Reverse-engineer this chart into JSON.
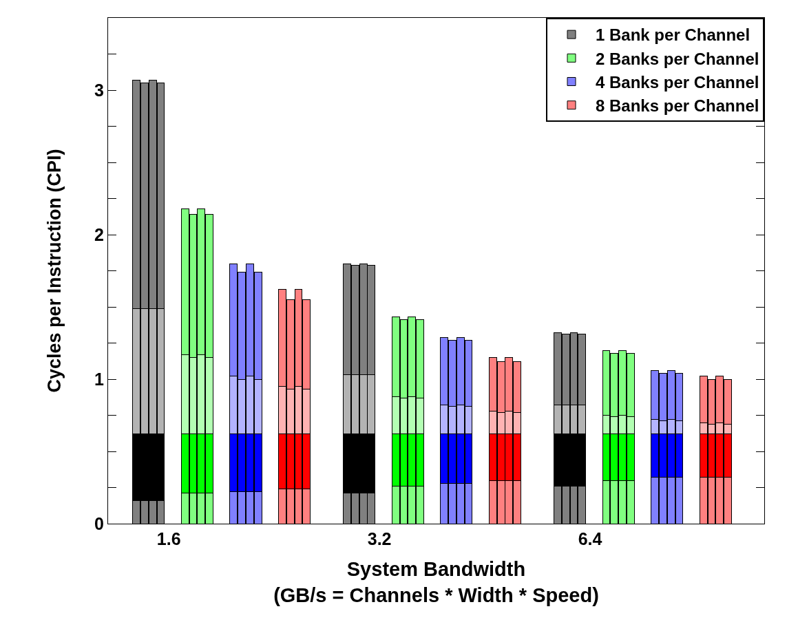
{
  "chart_data": {
    "type": "bar",
    "stacked": true,
    "xlabel": "System Bandwidth\n(GB/s = Channels * Width * Speed)",
    "ylabel": "Cycles per Instruction (CPI)",
    "legend": "top right",
    "categories": [
      null,
      null,
      null,
      null,
      null,
      null,
      null,
      "1.6",
      null,
      null,
      null,
      null,
      null,
      null,
      null,
      null,
      null,
      null,
      null,
      null,
      null,
      null,
      null,
      null,
      null,
      null,
      null,
      null,
      null,
      null,
      null,
      null,
      null,
      "3.2",
      null,
      null,
      null,
      null,
      null,
      null,
      null,
      null,
      null,
      null,
      null,
      null,
      null,
      null,
      null,
      null,
      null,
      null,
      null,
      null,
      null,
      null,
      null,
      null,
      null,
      "6.4",
      null,
      null,
      null,
      null,
      null,
      null,
      null,
      null,
      null,
      null,
      null,
      null,
      null,
      null,
      null,
      null,
      null,
      null,
      null,
      null,
      null
    ],
    "ylim": [
      0,
      3.5
    ],
    "yticks": [
      0,
      {
        "value": 0.25,
        "label": null
      },
      {
        "value": 0.5,
        "label": null
      },
      {
        "value": 0.75,
        "label": null
      },
      1,
      {
        "value": 1.25,
        "label": null
      },
      {
        "value": 1.5,
        "label": null
      },
      {
        "value": 1.75,
        "label": null
      },
      2,
      {
        "value": 2.25,
        "label": null
      },
      {
        "value": 2.5,
        "label": null
      },
      {
        "value": 2.75,
        "label": null
      },
      3,
      {
        "value": 3.25,
        "label": null
      }
    ],
    "series": [
      {
        "name": "1 Bank per Channel",
        "color": "#808080",
        "values": [
          null,
          null,
          null,
          0.16,
          0.16,
          0.16,
          0.16,
          null,
          null,
          null,
          null,
          null,
          null,
          null,
          null,
          null,
          null,
          null,
          null,
          null,
          null,
          null,
          null,
          null,
          null,
          null,
          null,
          null,
          null,
          0.21,
          0.21,
          0.21,
          0.21,
          null,
          null,
          null,
          null,
          null,
          null,
          null,
          null,
          null,
          null,
          null,
          null,
          null,
          null,
          null,
          null,
          null,
          null,
          null,
          null,
          null,
          null,
          0.26,
          0.26,
          0.26,
          0.26,
          null,
          null,
          null,
          null,
          null,
          null,
          null,
          null,
          null,
          null,
          null,
          null,
          null,
          null,
          null,
          null,
          null,
          null,
          null,
          null,
          null,
          null
        ]
      },
      {
        "color": "#000000",
        "values": [
          null,
          null,
          null,
          0.46,
          0.46,
          0.46,
          0.46,
          null,
          null,
          null,
          null,
          null,
          null,
          null,
          null,
          null,
          null,
          null,
          null,
          null,
          null,
          null,
          null,
          null,
          null,
          null,
          null,
          null,
          null,
          0.41,
          0.41,
          0.41,
          0.41,
          null,
          null,
          null,
          null,
          null,
          null,
          null,
          null,
          null,
          null,
          null,
          null,
          null,
          null,
          null,
          null,
          null,
          null,
          null,
          null,
          null,
          null,
          0.36,
          0.36,
          0.36,
          0.36,
          null,
          null,
          null,
          null,
          null,
          null,
          null,
          null,
          null,
          null,
          null,
          null,
          null,
          null,
          null,
          null,
          null,
          null,
          null,
          null,
          null,
          null
        ]
      },
      {
        "color": "#b3b3b3",
        "values": [
          null,
          null,
          null,
          0.87,
          0.87,
          0.87,
          0.87,
          null,
          null,
          null,
          null,
          null,
          null,
          null,
          null,
          null,
          null,
          null,
          null,
          null,
          null,
          null,
          null,
          null,
          null,
          null,
          null,
          null,
          null,
          0.41,
          0.41,
          0.41,
          0.41,
          null,
          null,
          null,
          null,
          null,
          null,
          null,
          null,
          null,
          null,
          null,
          null,
          null,
          null,
          null,
          null,
          null,
          null,
          null,
          null,
          null,
          null,
          0.2,
          0.2,
          0.2,
          0.2,
          null,
          null,
          null,
          null,
          null,
          null,
          null,
          null,
          null,
          null,
          null,
          null,
          null,
          null,
          null,
          null,
          null,
          null,
          null,
          null,
          null,
          null
        ]
      },
      {
        "color": "#808080",
        "values": [
          null,
          null,
          null,
          1.58,
          1.56,
          1.58,
          1.56,
          null,
          null,
          null,
          null,
          null,
          null,
          null,
          null,
          null,
          null,
          null,
          null,
          null,
          null,
          null,
          null,
          null,
          null,
          null,
          null,
          null,
          null,
          0.77,
          0.76,
          0.77,
          0.76,
          null,
          null,
          null,
          null,
          null,
          null,
          null,
          null,
          null,
          null,
          null,
          null,
          null,
          null,
          null,
          null,
          null,
          null,
          null,
          null,
          null,
          null,
          0.5,
          0.49,
          0.5,
          0.49,
          null,
          null,
          null,
          null,
          null,
          null,
          null,
          null,
          null,
          null,
          null,
          null,
          null,
          null,
          null,
          null,
          null,
          null,
          null,
          null,
          null,
          null
        ]
      },
      {
        "name": "2 Banks per Channel",
        "color": "#80ff80",
        "values": [
          null,
          null,
          null,
          null,
          null,
          null,
          null,
          null,
          null,
          0.21,
          0.21,
          0.21,
          0.21,
          null,
          null,
          null,
          null,
          null,
          null,
          null,
          null,
          null,
          null,
          null,
          null,
          null,
          null,
          null,
          null,
          null,
          null,
          null,
          null,
          null,
          null,
          0.26,
          0.26,
          0.26,
          0.26,
          null,
          null,
          null,
          null,
          null,
          null,
          null,
          null,
          null,
          null,
          null,
          null,
          null,
          null,
          null,
          null,
          null,
          null,
          null,
          null,
          null,
          null,
          0.3,
          0.3,
          0.3,
          0.3,
          null,
          null,
          null,
          null,
          null,
          null,
          null,
          null,
          null,
          null,
          null,
          null,
          null,
          null,
          null,
          null
        ]
      },
      {
        "color": "#00ff00",
        "values": [
          null,
          null,
          null,
          null,
          null,
          null,
          null,
          null,
          null,
          0.41,
          0.41,
          0.41,
          0.41,
          null,
          null,
          null,
          null,
          null,
          null,
          null,
          null,
          null,
          null,
          null,
          null,
          null,
          null,
          null,
          null,
          null,
          null,
          null,
          null,
          null,
          null,
          0.36,
          0.36,
          0.36,
          0.36,
          null,
          null,
          null,
          null,
          null,
          null,
          null,
          null,
          null,
          null,
          null,
          null,
          null,
          null,
          null,
          null,
          null,
          null,
          null,
          null,
          null,
          null,
          0.32,
          0.32,
          0.32,
          0.32,
          null,
          null,
          null,
          null,
          null,
          null,
          null,
          null,
          null,
          null,
          null,
          null,
          null,
          null,
          null,
          null
        ]
      },
      {
        "color": "#b3ffb3",
        "values": [
          null,
          null,
          null,
          null,
          null,
          null,
          null,
          null,
          null,
          0.55,
          0.53,
          0.55,
          0.53,
          null,
          null,
          null,
          null,
          null,
          null,
          null,
          null,
          null,
          null,
          null,
          null,
          null,
          null,
          null,
          null,
          null,
          null,
          null,
          null,
          null,
          null,
          0.26,
          0.25,
          0.26,
          0.25,
          null,
          null,
          null,
          null,
          null,
          null,
          null,
          null,
          null,
          null,
          null,
          null,
          null,
          null,
          null,
          null,
          null,
          null,
          null,
          null,
          null,
          null,
          0.13,
          0.12,
          0.13,
          0.12,
          null,
          null,
          null,
          null,
          null,
          null,
          null,
          null,
          null,
          null,
          null,
          null,
          null,
          null,
          null,
          null
        ]
      },
      {
        "color": "#80ff80",
        "values": [
          null,
          null,
          null,
          null,
          null,
          null,
          null,
          null,
          null,
          1.01,
          0.99,
          1.01,
          0.99,
          null,
          null,
          null,
          null,
          null,
          null,
          null,
          null,
          null,
          null,
          null,
          null,
          null,
          null,
          null,
          null,
          null,
          null,
          null,
          null,
          null,
          null,
          0.55,
          0.54,
          0.55,
          0.54,
          null,
          null,
          null,
          null,
          null,
          null,
          null,
          null,
          null,
          null,
          null,
          null,
          null,
          null,
          null,
          null,
          null,
          null,
          null,
          null,
          null,
          null,
          0.45,
          0.44,
          0.45,
          0.44,
          null,
          null,
          null,
          null,
          null,
          null,
          null,
          null,
          null,
          null,
          null,
          null,
          null,
          null,
          null,
          null
        ]
      },
      {
        "name": "4 Banks per Channel",
        "color": "#8080ff",
        "values": [
          null,
          null,
          null,
          null,
          null,
          null,
          null,
          null,
          null,
          null,
          null,
          null,
          null,
          null,
          null,
          0.22,
          0.22,
          0.22,
          0.22,
          null,
          null,
          null,
          null,
          null,
          null,
          null,
          null,
          null,
          null,
          null,
          null,
          null,
          null,
          null,
          null,
          null,
          null,
          null,
          null,
          null,
          null,
          0.28,
          0.28,
          0.28,
          0.28,
          null,
          null,
          null,
          null,
          null,
          null,
          null,
          null,
          null,
          null,
          null,
          null,
          null,
          null,
          null,
          null,
          null,
          null,
          null,
          null,
          null,
          null,
          0.32,
          0.32,
          0.32,
          0.32,
          null,
          null,
          null,
          null,
          null,
          null,
          null,
          null,
          null,
          null
        ]
      },
      {
        "color": "#0000ff",
        "values": [
          null,
          null,
          null,
          null,
          null,
          null,
          null,
          null,
          null,
          null,
          null,
          null,
          null,
          null,
          null,
          0.4,
          0.4,
          0.4,
          0.4,
          null,
          null,
          null,
          null,
          null,
          null,
          null,
          null,
          null,
          null,
          null,
          null,
          null,
          null,
          null,
          null,
          null,
          null,
          null,
          null,
          null,
          null,
          0.34,
          0.34,
          0.34,
          0.34,
          null,
          null,
          null,
          null,
          null,
          null,
          null,
          null,
          null,
          null,
          null,
          null,
          null,
          null,
          null,
          null,
          null,
          null,
          null,
          null,
          null,
          null,
          0.3,
          0.3,
          0.3,
          0.3,
          null,
          null,
          null,
          null,
          null,
          null,
          null,
          null,
          null,
          null
        ]
      },
      {
        "color": "#b3b3ff",
        "values": [
          null,
          null,
          null,
          null,
          null,
          null,
          null,
          null,
          null,
          null,
          null,
          null,
          null,
          null,
          null,
          0.4,
          0.38,
          0.4,
          0.38,
          null,
          null,
          null,
          null,
          null,
          null,
          null,
          null,
          null,
          null,
          null,
          null,
          null,
          null,
          null,
          null,
          null,
          null,
          null,
          null,
          null,
          null,
          0.2,
          0.19,
          0.2,
          0.19,
          null,
          null,
          null,
          null,
          null,
          null,
          null,
          null,
          null,
          null,
          null,
          null,
          null,
          null,
          null,
          null,
          null,
          null,
          null,
          null,
          null,
          null,
          0.1,
          0.09,
          0.1,
          0.09,
          null,
          null,
          null,
          null,
          null,
          null,
          null,
          null,
          null,
          null
        ]
      },
      {
        "color": "#8080ff",
        "values": [
          null,
          null,
          null,
          null,
          null,
          null,
          null,
          null,
          null,
          null,
          null,
          null,
          null,
          null,
          null,
          0.78,
          0.74,
          0.78,
          0.74,
          null,
          null,
          null,
          null,
          null,
          null,
          null,
          null,
          null,
          null,
          null,
          null,
          null,
          null,
          null,
          null,
          null,
          null,
          null,
          null,
          null,
          null,
          0.47,
          0.46,
          0.47,
          0.46,
          null,
          null,
          null,
          null,
          null,
          null,
          null,
          null,
          null,
          null,
          null,
          null,
          null,
          null,
          null,
          null,
          null,
          null,
          null,
          null,
          null,
          null,
          0.34,
          0.33,
          0.34,
          0.33,
          null,
          null,
          null,
          null,
          null,
          null,
          null,
          null,
          null,
          null
        ]
      },
      {
        "name": "8 Banks per Channel",
        "color": "#ff8080",
        "values": [
          null,
          null,
          null,
          null,
          null,
          null,
          null,
          null,
          null,
          null,
          null,
          null,
          null,
          null,
          null,
          null,
          null,
          null,
          null,
          null,
          null,
          0.24,
          0.24,
          0.24,
          0.24,
          null,
          null,
          null,
          null,
          null,
          null,
          null,
          null,
          null,
          null,
          null,
          null,
          null,
          null,
          null,
          null,
          null,
          null,
          null,
          null,
          null,
          null,
          0.3,
          0.3,
          0.3,
          0.3,
          null,
          null,
          null,
          null,
          null,
          null,
          null,
          null,
          null,
          null,
          null,
          null,
          null,
          null,
          null,
          null,
          null,
          null,
          null,
          null,
          null,
          null,
          0.32,
          0.32,
          0.32,
          0.32,
          null,
          null,
          null,
          null
        ]
      },
      {
        "color": "#ff0000",
        "values": [
          null,
          null,
          null,
          null,
          null,
          null,
          null,
          null,
          null,
          null,
          null,
          null,
          null,
          null,
          null,
          null,
          null,
          null,
          null,
          null,
          null,
          0.38,
          0.38,
          0.38,
          0.38,
          null,
          null,
          null,
          null,
          null,
          null,
          null,
          null,
          null,
          null,
          null,
          null,
          null,
          null,
          null,
          null,
          null,
          null,
          null,
          null,
          null,
          null,
          0.32,
          0.32,
          0.32,
          0.32,
          null,
          null,
          null,
          null,
          null,
          null,
          null,
          null,
          null,
          null,
          null,
          null,
          null,
          null,
          null,
          null,
          null,
          null,
          null,
          null,
          null,
          null,
          0.3,
          0.3,
          0.3,
          0.3,
          null,
          null,
          null,
          null
        ]
      },
      {
        "color": "#ffb3b3",
        "values": [
          null,
          null,
          null,
          null,
          null,
          null,
          null,
          null,
          null,
          null,
          null,
          null,
          null,
          null,
          null,
          null,
          null,
          null,
          null,
          null,
          null,
          0.33,
          0.31,
          0.33,
          0.31,
          null,
          null,
          null,
          null,
          null,
          null,
          null,
          null,
          null,
          null,
          null,
          null,
          null,
          null,
          null,
          null,
          null,
          null,
          null,
          null,
          null,
          null,
          0.16,
          0.15,
          0.16,
          0.15,
          null,
          null,
          null,
          null,
          null,
          null,
          null,
          null,
          null,
          null,
          null,
          null,
          null,
          null,
          null,
          null,
          null,
          null,
          null,
          null,
          null,
          null,
          0.08,
          0.07,
          0.08,
          0.07,
          null,
          null,
          null,
          null
        ]
      },
      {
        "color": "#ff8080",
        "values": [
          null,
          null,
          null,
          null,
          null,
          null,
          null,
          null,
          null,
          null,
          null,
          null,
          null,
          null,
          null,
          null,
          null,
          null,
          null,
          null,
          null,
          0.67,
          0.62,
          0.67,
          0.62,
          null,
          null,
          null,
          null,
          null,
          null,
          null,
          null,
          null,
          null,
          null,
          null,
          null,
          null,
          null,
          null,
          null,
          null,
          null,
          null,
          null,
          null,
          0.37,
          0.35,
          0.37,
          0.35,
          null,
          null,
          null,
          null,
          null,
          null,
          null,
          null,
          null,
          null,
          null,
          null,
          null,
          null,
          null,
          null,
          null,
          null,
          null,
          null,
          null,
          null,
          0.32,
          0.31,
          0.32,
          0.31,
          null,
          null,
          null,
          null
        ]
      }
    ]
  }
}
